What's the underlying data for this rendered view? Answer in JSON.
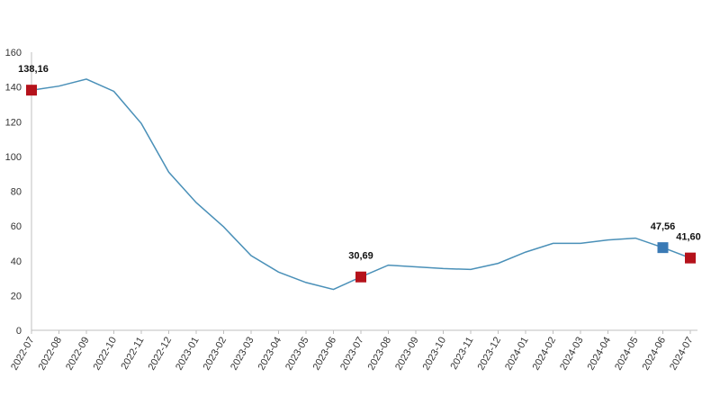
{
  "chart_data": {
    "type": "line",
    "title": "",
    "xlabel": "",
    "ylabel": "",
    "ylim": [
      0,
      160
    ],
    "yticks": [
      "0",
      "20",
      "40",
      "60",
      "80",
      "100",
      "120",
      "140",
      "160"
    ],
    "grid": false,
    "legend": "none",
    "line_color": "#4a90b8",
    "categories": [
      "2022-07",
      "2022-08",
      "2022-09",
      "2022-10",
      "2022-11",
      "2022-12",
      "2023-01",
      "2023-02",
      "2023-03",
      "2023-04",
      "2023-05",
      "2023-06",
      "2023-07",
      "2023-08",
      "2023-09",
      "2023-10",
      "2023-11",
      "2023-12",
      "2024-01",
      "2024-02",
      "2024-03",
      "2024-04",
      "2024-05",
      "2024-06",
      "2024-07"
    ],
    "series": [
      {
        "name": "",
        "values": [
          138.16,
          140.5,
          144.5,
          137.5,
          119,
          91,
          73.5,
          59.5,
          43,
          33.5,
          27.5,
          23.5,
          30.69,
          37.5,
          36.5,
          35.5,
          35,
          38.5,
          45,
          50,
          50,
          52,
          53,
          47.56,
          41.6
        ]
      }
    ],
    "annotations": [
      {
        "index": 0,
        "label": "138,16",
        "color": "#b5121b"
      },
      {
        "index": 12,
        "label": "30,69",
        "color": "#b5121b"
      },
      {
        "index": 23,
        "label": "47,56",
        "color": "#3a7ab5"
      },
      {
        "index": 24,
        "label": "41,60",
        "color": "#b5121b"
      }
    ]
  }
}
